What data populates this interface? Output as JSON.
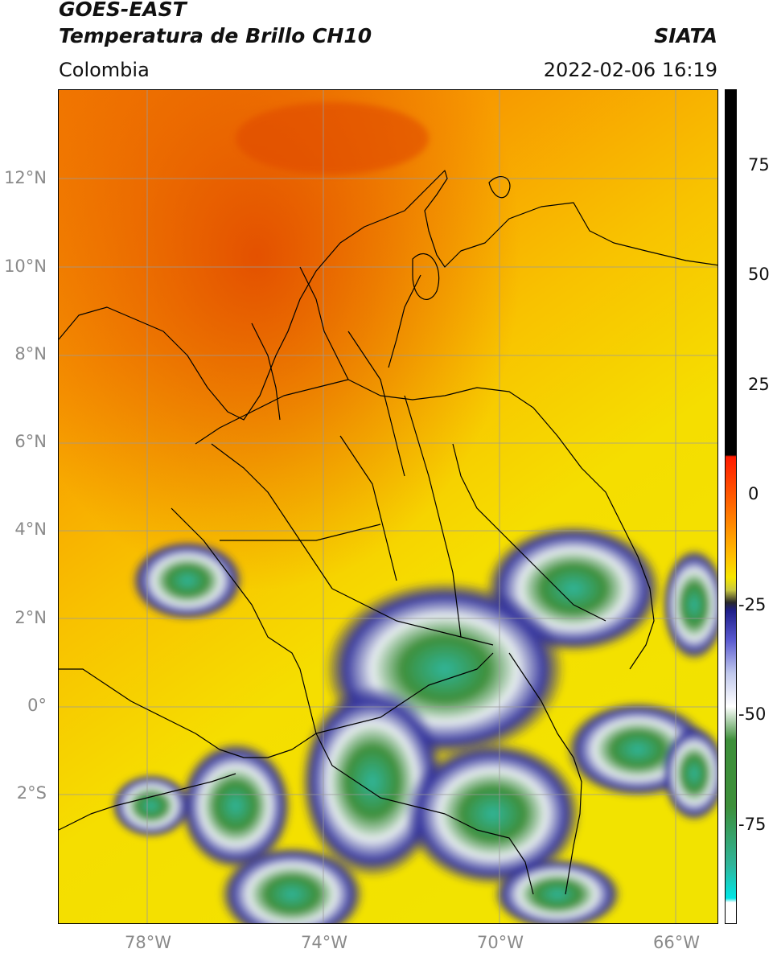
{
  "header": {
    "satellite": "GOES-EAST",
    "product": "Temperatura de Brillo CH10",
    "region": "Colombia",
    "agency": "SIATA",
    "datetime": "2022-02-06 16:19"
  },
  "map": {
    "lat_labels": [
      "12°N",
      "10°N",
      "8°N",
      "6°N",
      "4°N",
      "2°N",
      "0°",
      "2°S"
    ],
    "lon_labels": [
      "78°W",
      "74°W",
      "70°W",
      "66°W"
    ],
    "colors": {
      "warm": "#f7e600",
      "hot": "#ff7a00",
      "very_hot": "#e24a00",
      "cloud_edge": "#1f1f8a",
      "cloud_mid": "#ffffff",
      "cloud_core": "#3d8f3a",
      "cloud_coldest": "#2fb59a",
      "grid": "#9a9a9a",
      "border": "#000000"
    }
  },
  "colorbar": {
    "ticks": [
      "75",
      "50",
      "25",
      "0",
      "-25",
      "-50",
      "-75"
    ]
  }
}
